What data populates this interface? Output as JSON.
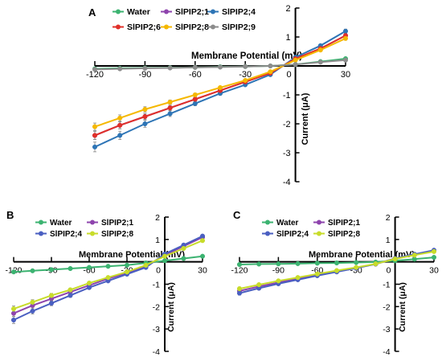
{
  "figure": {
    "panels": [
      "A",
      "B",
      "C"
    ]
  },
  "colors": {
    "Water": "#3cb371",
    "SlPIP2;1": "#8e44ad",
    "SlPIP2;4": "#2e75b6",
    "SlPIP2;4_BC": "#4a5fc1",
    "SlPIP2;6": "#e0302a",
    "SlPIP2;8": "#f5b800",
    "SlPIP2;8_BC": "#c8dc2a",
    "SlPIP2;9": "#8c8c8c"
  },
  "chart_data": [
    {
      "panel": "A",
      "type": "line",
      "xlabel": "Membrane Potential (mV)",
      "ylabel": "Current (μA)",
      "xlim": [
        -120,
        30
      ],
      "ylim": [
        -4,
        2
      ],
      "xticks": [
        -120,
        -90,
        -60,
        -30,
        0,
        30
      ],
      "yticks": [
        -4,
        -3,
        -2,
        -1,
        0,
        1,
        2
      ],
      "legend_position": "top",
      "x": [
        -120,
        -105,
        -90,
        -75,
        -60,
        -45,
        -30,
        -15,
        0,
        15,
        30
      ],
      "series": [
        {
          "name": "Water",
          "color_key": "Water",
          "values": [
            -0.1,
            -0.08,
            -0.07,
            -0.06,
            -0.05,
            -0.03,
            -0.02,
            0.0,
            0.05,
            0.15,
            0.25
          ]
        },
        {
          "name": "SlPIP2;1",
          "color_key": "SlPIP2;1",
          "values": [
            -2.4,
            -2.05,
            -1.75,
            -1.45,
            -1.15,
            -0.85,
            -0.55,
            -0.25,
            0.25,
            0.6,
            1.05
          ]
        },
        {
          "name": "SlPIP2;4",
          "color_key": "SlPIP2;4",
          "values": [
            -2.8,
            -2.4,
            -2.0,
            -1.65,
            -1.3,
            -0.95,
            -0.65,
            -0.3,
            0.3,
            0.7,
            1.2
          ]
        },
        {
          "name": "SlPIP2;6",
          "color_key": "SlPIP2;6",
          "values": [
            -2.4,
            -2.05,
            -1.75,
            -1.45,
            -1.15,
            -0.85,
            -0.55,
            -0.25,
            0.25,
            0.6,
            1.05
          ]
        },
        {
          "name": "SlPIP2;8",
          "color_key": "SlPIP2;8",
          "values": [
            -2.1,
            -1.8,
            -1.5,
            -1.25,
            -1.0,
            -0.75,
            -0.5,
            -0.2,
            0.2,
            0.55,
            0.95
          ]
        },
        {
          "name": "SlPIP2;9",
          "color_key": "SlPIP2;9",
          "values": [
            -0.12,
            -0.1,
            -0.08,
            -0.07,
            -0.05,
            -0.04,
            -0.02,
            0.0,
            0.05,
            0.13,
            0.2
          ]
        }
      ]
    },
    {
      "panel": "B",
      "type": "line",
      "xlabel": "Membrane Potential (mV)",
      "ylabel": "Current (μA)",
      "xlim": [
        -120,
        30
      ],
      "ylim": [
        -4,
        2
      ],
      "xticks": [
        -120,
        -90,
        -60,
        -30,
        0,
        30
      ],
      "yticks": [
        -4,
        -3,
        -2,
        -1,
        0,
        1,
        2
      ],
      "legend_position": "top-left",
      "x": [
        -120,
        -105,
        -90,
        -75,
        -60,
        -45,
        -30,
        -15,
        0,
        15,
        30
      ],
      "series": [
        {
          "name": "Water",
          "color_key": "Water",
          "values": [
            -0.45,
            -0.4,
            -0.35,
            -0.3,
            -0.25,
            -0.2,
            -0.15,
            -0.05,
            0.05,
            0.15,
            0.25
          ]
        },
        {
          "name": "SlPIP2;1",
          "color_key": "SlPIP2;1",
          "values": [
            -2.3,
            -1.95,
            -1.65,
            -1.35,
            -1.05,
            -0.75,
            -0.5,
            -0.2,
            0.3,
            0.7,
            1.1
          ]
        },
        {
          "name": "SlPIP2;4",
          "color_key": "SlPIP2;4_BC",
          "values": [
            -2.6,
            -2.2,
            -1.85,
            -1.5,
            -1.15,
            -0.85,
            -0.55,
            -0.25,
            0.35,
            0.75,
            1.15
          ]
        },
        {
          "name": "SlPIP2;8",
          "color_key": "SlPIP2;8_BC",
          "values": [
            -2.1,
            -1.8,
            -1.5,
            -1.25,
            -0.95,
            -0.7,
            -0.45,
            -0.15,
            0.25,
            0.6,
            0.95
          ]
        }
      ]
    },
    {
      "panel": "C",
      "type": "line",
      "xlabel": "Membrane Potential (mV)",
      "ylabel": "Current (μA)",
      "xlim": [
        -120,
        30
      ],
      "ylim": [
        -4,
        2
      ],
      "xticks": [
        -120,
        -90,
        -60,
        -30,
        0,
        30
      ],
      "yticks": [
        -4,
        -3,
        -2,
        -1,
        0,
        1,
        2
      ],
      "legend_position": "top-left",
      "x": [
        -120,
        -105,
        -90,
        -75,
        -60,
        -45,
        -30,
        -15,
        0,
        15,
        30
      ],
      "series": [
        {
          "name": "Water",
          "color_key": "Water",
          "values": [
            -0.12,
            -0.1,
            -0.09,
            -0.08,
            -0.06,
            -0.05,
            -0.03,
            -0.01,
            0.05,
            0.12,
            0.2
          ]
        },
        {
          "name": "SlPIP2;1",
          "color_key": "SlPIP2;1",
          "values": [
            -1.3,
            -1.1,
            -0.92,
            -0.75,
            -0.58,
            -0.42,
            -0.27,
            -0.1,
            0.15,
            0.32,
            0.5
          ]
        },
        {
          "name": "SlPIP2;4",
          "color_key": "SlPIP2;4_BC",
          "values": [
            -1.4,
            -1.18,
            -0.98,
            -0.8,
            -0.62,
            -0.45,
            -0.28,
            -0.1,
            0.15,
            0.34,
            0.52
          ]
        },
        {
          "name": "SlPIP2;8",
          "color_key": "SlPIP2;8_BC",
          "values": [
            -1.2,
            -1.02,
            -0.85,
            -0.7,
            -0.54,
            -0.39,
            -0.25,
            -0.09,
            0.13,
            0.3,
            0.46
          ]
        }
      ]
    }
  ]
}
